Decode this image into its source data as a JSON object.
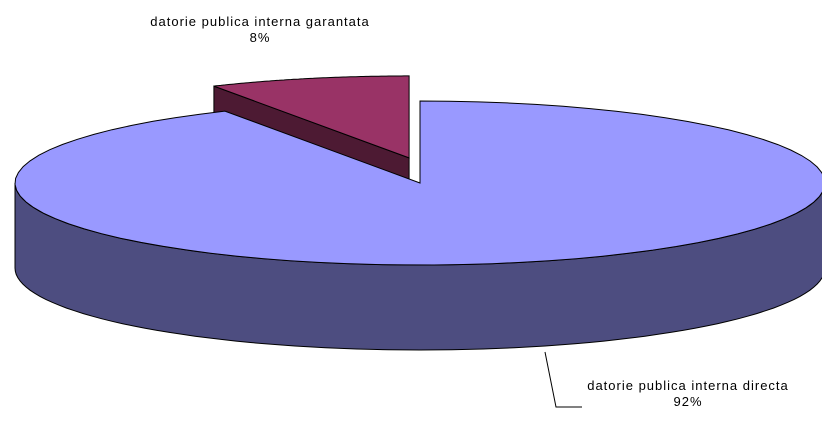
{
  "chart_data": {
    "type": "pie",
    "categories": [
      "datorie publica interna directa",
      "datorie publica interna garantata"
    ],
    "values": [
      92,
      8
    ],
    "value_labels": [
      "92%",
      "8%"
    ],
    "colors": [
      "#9999ff",
      "#993366"
    ],
    "side_colors": [
      "#4d4d80",
      "#4d1a33"
    ]
  }
}
